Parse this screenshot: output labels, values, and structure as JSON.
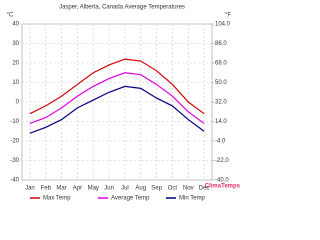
{
  "chart_data": {
    "type": "line",
    "title": "Jasper, Alberta, Canada Average Temperatures",
    "y_label": "°C",
    "y2_label": "°F",
    "watermark": "ClimaTemps",
    "categories": [
      "Jan",
      "Feb",
      "Mar",
      "Apr",
      "May",
      "Jun",
      "Jul",
      "Aug",
      "Sep",
      "Oct",
      "Nov",
      "Dec"
    ],
    "series": [
      {
        "name": "Max Temp",
        "color": "#d40000",
        "values": [
          -6,
          -2,
          3,
          9,
          15,
          19,
          22,
          21,
          16,
          9,
          0,
          -6
        ]
      },
      {
        "name": "Average Temp",
        "color": "#e000e0",
        "values": [
          -11,
          -8,
          -3,
          3,
          8,
          12,
          15,
          14,
          9,
          3,
          -5,
          -11
        ]
      },
      {
        "name": "Min Temp",
        "color": "#000080",
        "values": [
          -16,
          -13,
          -9,
          -3,
          1,
          5,
          8,
          7,
          2,
          -2,
          -9,
          -15
        ]
      }
    ],
    "ylim": [
      -40,
      40
    ],
    "yticks": [
      -40,
      -30,
      -20,
      -10,
      0,
      10,
      20,
      30,
      40
    ],
    "y2lim": [
      -40,
      104
    ],
    "y2ticks": [
      {
        "value": -40,
        "label": "-40.0"
      },
      {
        "value": -22,
        "label": "-22.0"
      },
      {
        "value": -4,
        "label": "-4.0"
      },
      {
        "value": 14,
        "label": "14.0"
      },
      {
        "value": 32,
        "label": "32.0"
      },
      {
        "value": 50,
        "label": "50.0"
      },
      {
        "value": 68,
        "label": "68.0"
      },
      {
        "value": 86,
        "label": "86.0"
      },
      {
        "value": 104,
        "label": "104.0"
      }
    ],
    "grid": true
  }
}
